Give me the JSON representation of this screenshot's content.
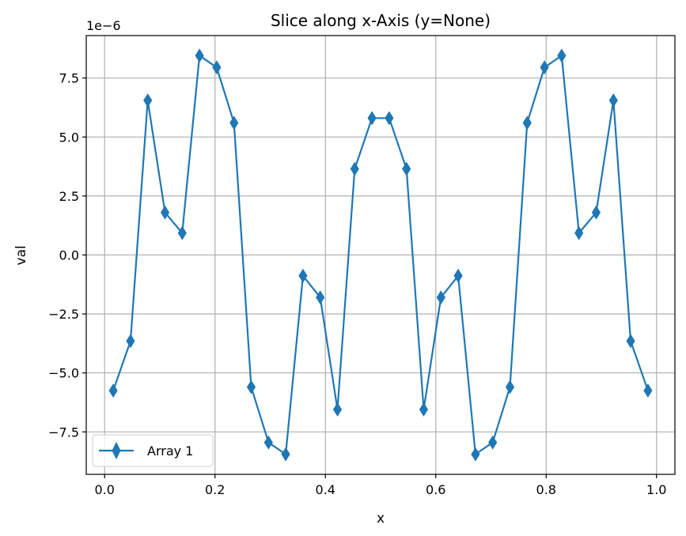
{
  "chart_data": {
    "type": "line",
    "title": "Slice along x-Axis (y=None)",
    "xlabel": "x",
    "ylabel": "val",
    "offset_label": "1e−6",
    "xlim": [
      -0.0333,
      1.0333
    ],
    "ylim": [
      -9.3,
      9.3
    ],
    "grid": true,
    "legend_position": "lower-left",
    "x_ticks": [
      {
        "value": 0.0,
        "label": "0.0"
      },
      {
        "value": 0.2,
        "label": "0.2"
      },
      {
        "value": 0.4,
        "label": "0.4"
      },
      {
        "value": 0.6,
        "label": "0.6"
      },
      {
        "value": 0.8,
        "label": "0.8"
      },
      {
        "value": 1.0,
        "label": "1.0"
      }
    ],
    "y_ticks": [
      {
        "value": -7.5,
        "label": "−7.5"
      },
      {
        "value": -5.0,
        "label": "−5.0"
      },
      {
        "value": -2.5,
        "label": "−2.5"
      },
      {
        "value": 0.0,
        "label": "0.0"
      },
      {
        "value": 2.5,
        "label": "2.5"
      },
      {
        "value": 5.0,
        "label": "5.0"
      },
      {
        "value": 7.5,
        "label": "7.5"
      }
    ],
    "series": [
      {
        "name": "Array 1",
        "color": "#1f77b4",
        "marker": "thin_diamond",
        "x": [
          0.0156,
          0.0469,
          0.0781,
          0.1094,
          0.1406,
          0.1719,
          0.2031,
          0.2344,
          0.2656,
          0.2969,
          0.3281,
          0.3594,
          0.3906,
          0.4219,
          0.4531,
          0.4844,
          0.5156,
          0.5469,
          0.5781,
          0.6094,
          0.6406,
          0.6719,
          0.7031,
          0.7344,
          0.7656,
          0.7969,
          0.8281,
          0.8594,
          0.8906,
          0.9219,
          0.9531,
          0.9844
        ],
        "y": [
          -5.75,
          -3.65,
          6.55,
          1.8,
          0.93,
          8.45,
          7.95,
          5.6,
          -5.6,
          -7.95,
          -8.45,
          -0.88,
          -1.8,
          -6.55,
          3.65,
          5.8,
          5.8,
          3.65,
          -6.55,
          -1.8,
          -0.88,
          -8.45,
          -7.95,
          -5.6,
          5.6,
          7.95,
          8.45,
          0.93,
          1.8,
          6.55,
          -3.65,
          -5.75
        ]
      }
    ]
  }
}
